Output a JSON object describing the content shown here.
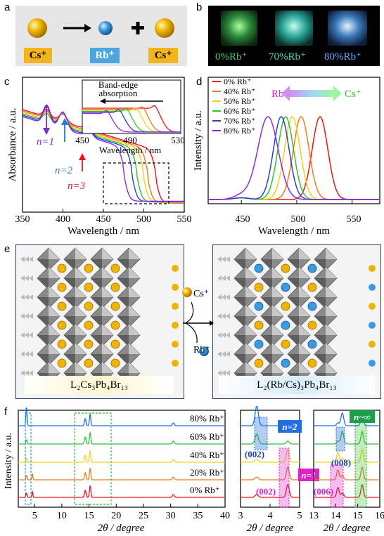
{
  "panel_labels": {
    "a": "a",
    "b": "b",
    "c": "c",
    "d": "d",
    "e": "e",
    "f": "f"
  },
  "panel_a": {
    "cs_label": "Cs⁺",
    "rb_label": "Rb⁺",
    "cs_label2": "Cs⁺",
    "arrow": "→",
    "plus": "+"
  },
  "panel_b": {
    "samples": [
      "0%Rb⁺",
      "70%Rb⁺",
      "80%Rb⁺"
    ],
    "colors": [
      "#3ad06b",
      "#3ee0c0",
      "#6aa8ff"
    ]
  },
  "panel_c": {
    "ylabel": "Absorbance / a.u.",
    "xlabel": "Wavelength / nm",
    "xticks": [
      "350",
      "400",
      "450",
      "500",
      "550"
    ],
    "inset_title_1": "Band-edge",
    "inset_title_2": "absorption",
    "inset_xlabel": "Wavelength / nm",
    "inset_xticks": [
      "450",
      "490",
      "530"
    ],
    "n1": "n=1",
    "n2": "n=2",
    "n3": "n=3"
  },
  "panel_d": {
    "ylabel": "Intensity / a.u.",
    "xlabel": "Wavelength / nm",
    "xticks": [
      "450",
      "500",
      "550"
    ],
    "legend": [
      "0% Rb⁺",
      "40% Rb⁺",
      "50% Rb⁺",
      "60% Rb⁺",
      "70% Rb⁺",
      "80% Rb⁺"
    ],
    "colors": [
      "#e8141c",
      "#f07a1c",
      "#f2d21a",
      "#33c233",
      "#2a3fcf",
      "#8a2be2"
    ],
    "rb_label": "Rb⁺",
    "cs_label": "Cs⁺",
    "peaks": [
      521,
      504,
      496,
      490,
      486,
      474
    ]
  },
  "panel_e": {
    "left_formula": "L₂Cs₃Pb₄Br₁₃",
    "right_formula": "L₂(Rb/Cs)₃Pb₄Br₁₃",
    "cs_label": "Cs⁺",
    "rb_label": "Rb⁺"
  },
  "panel_f": {
    "ylabel": "Intensity / a.u.",
    "xlabel": "2θ / degree",
    "main_xticks": [
      "5",
      "10",
      "15",
      "20",
      "25",
      "30",
      "35",
      "40"
    ],
    "series": [
      "80% Rb⁺",
      "60% Rb⁺",
      "40% Rb⁺",
      "20% Rb⁺",
      "0% Rb⁺"
    ],
    "colors": [
      "#1f6fe0",
      "#33c233",
      "#f2d21a",
      "#f07a1c",
      "#e8141c"
    ],
    "mid_xticks": [
      "3",
      "4",
      "5"
    ],
    "right_xticks": [
      "13",
      "14",
      "15",
      "16"
    ],
    "n2_label": "n=2",
    "n1_label": "n=1",
    "ninf_label": "n~∞",
    "peak_002_blue": "(002)",
    "peak_008": "(008)",
    "peak_002_pink": "(002)",
    "peak_006": "(006)"
  }
}
